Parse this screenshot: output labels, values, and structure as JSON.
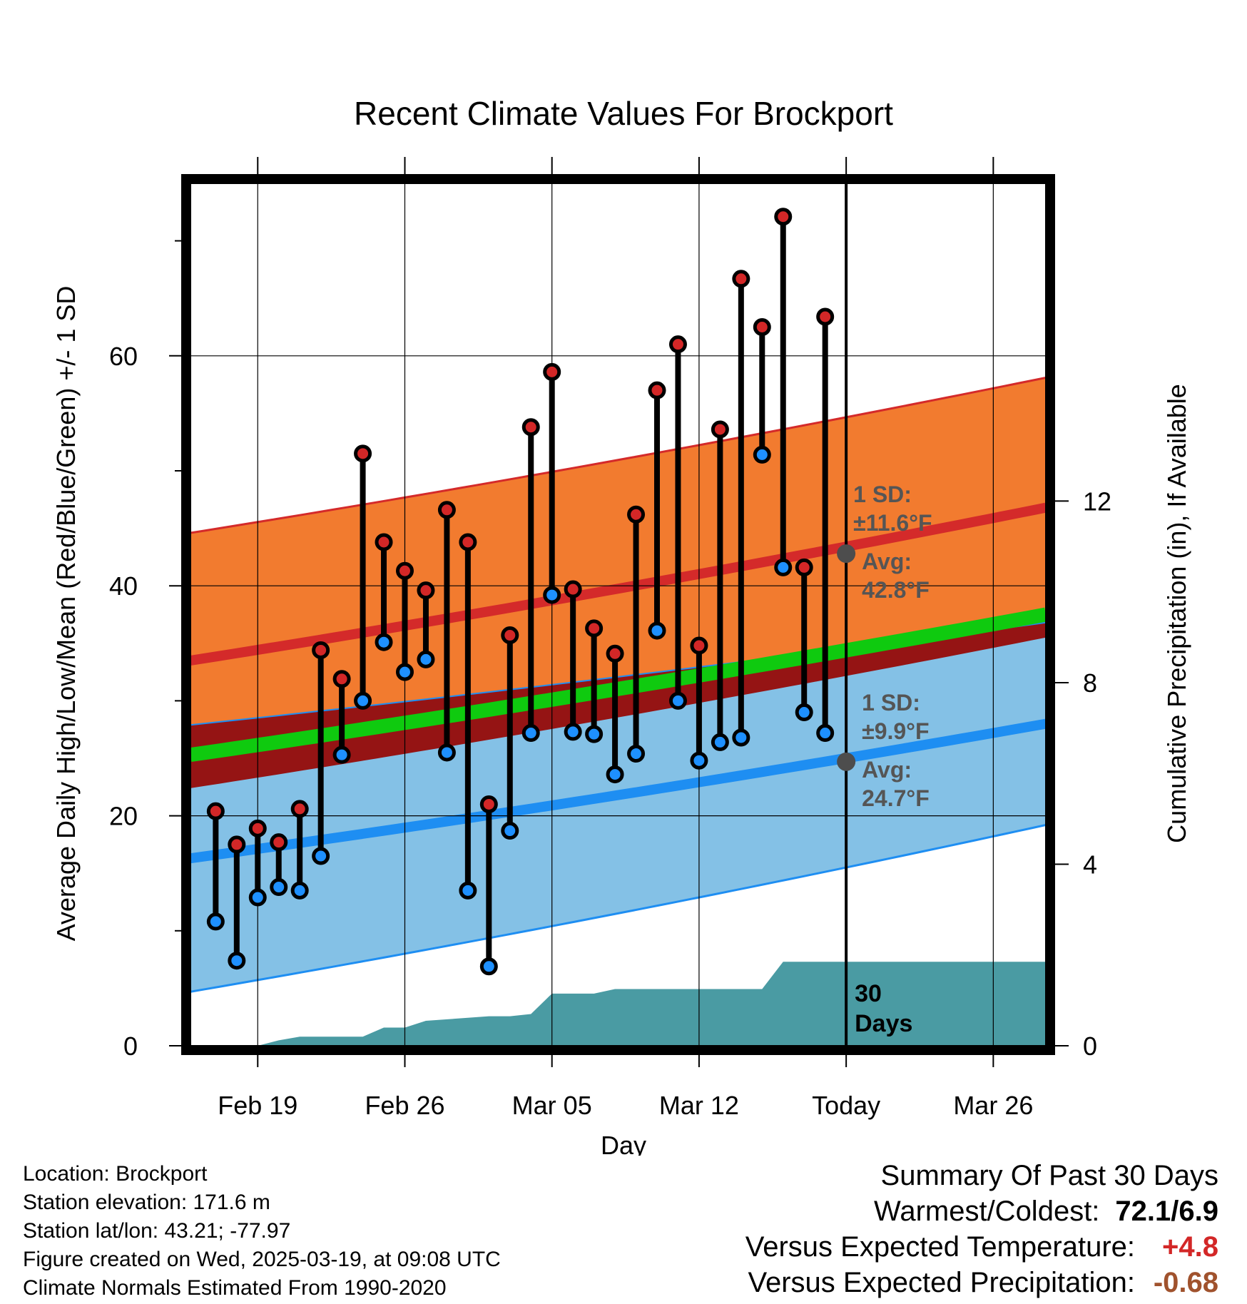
{
  "chart_data": {
    "type": "line",
    "title": "Recent Climate Values For Brockport",
    "xlabel": "Day",
    "ylabel_left": "Average Daily High/Low/Mean (Red/Blue/Green) +/- 1 SD",
    "ylabel_right": "Cumulative Precipitation (in), If Available",
    "x_tick_labels": [
      "Feb 19",
      "Feb 26",
      "Mar 05",
      "Mar 12",
      "Today",
      "Mar 26"
    ],
    "x_tick_days": [
      19,
      26,
      33,
      40,
      47,
      54
    ],
    "y_left_ticks": [
      0,
      20,
      40,
      60
    ],
    "y_left_range": [
      0,
      75
    ],
    "y_right_ticks": [
      0,
      4,
      8,
      12
    ],
    "y_right_range": [
      0,
      19
    ],
    "x_range_days": [
      15.8,
      56.5
    ],
    "x_axis_note": "day numbers count from Feb 1 2025 (Feb 19 = 19, Mar 05 = 33, Today Mar 19 = 47)",
    "daily_temps": {
      "days": [
        17,
        18,
        19,
        20,
        21,
        22,
        23,
        24,
        25,
        26,
        27,
        28,
        29,
        30,
        31,
        32,
        33,
        34,
        35,
        36,
        37,
        38,
        39,
        40,
        41,
        42,
        43,
        44,
        45,
        46
      ],
      "high": [
        20.4,
        17.5,
        18.9,
        17.7,
        20.6,
        34.4,
        31.9,
        51.5,
        43.8,
        41.3,
        39.6,
        46.6,
        43.8,
        21.0,
        35.7,
        53.8,
        58.6,
        39.7,
        36.3,
        34.1,
        46.2,
        57.0,
        61.0,
        34.8,
        53.6,
        66.7,
        62.5,
        72.1,
        41.6,
        63.4
      ],
      "low": [
        10.8,
        7.4,
        12.9,
        13.8,
        13.5,
        16.5,
        25.3,
        30.0,
        35.1,
        32.5,
        33.6,
        25.5,
        13.5,
        6.9,
        18.7,
        27.2,
        39.2,
        27.3,
        27.1,
        23.6,
        25.4,
        36.1,
        30.0,
        24.8,
        26.4,
        26.8,
        51.4,
        41.6,
        29.0,
        27.2
      ]
    },
    "normals": {
      "days": [
        15.8,
        56.5
      ],
      "avg_high": [
        33.5,
        46.8
      ],
      "avg_high_plus_1sd": [
        44.6,
        58.1
      ],
      "avg_mean": [
        25.3,
        37.5
      ],
      "avg_low": [
        16.3,
        28.0
      ],
      "avg_low_minus_1sd": [
        4.7,
        19.2
      ]
    },
    "precip_cumulative": {
      "days": [
        15.8,
        19.0,
        20.0,
        21.0,
        24.0,
        25.0,
        26.0,
        27.0,
        30.0,
        31.0,
        32.0,
        33.0,
        35.0,
        36.0,
        40.0,
        43.0,
        44.0,
        47.0,
        56.5
      ],
      "values": [
        0.0,
        0.0,
        0.12,
        0.2,
        0.2,
        0.4,
        0.4,
        0.55,
        0.65,
        0.65,
        0.7,
        1.15,
        1.15,
        1.25,
        1.25,
        1.25,
        1.85,
        1.85,
        1.85
      ]
    },
    "today_markers": {
      "high": {
        "sd_label": "1 SD:",
        "sd_value": "±11.6°F",
        "avg_label": "Avg:",
        "avg_value": "42.8°F",
        "avg": 42.8
      },
      "low": {
        "sd_label": "1 SD:",
        "sd_value": "±9.9°F",
        "avg_label": "Avg:",
        "avg_value": "24.7°F",
        "avg": 24.7
      }
    },
    "precip_note": [
      "30",
      "Days"
    ],
    "grid": true,
    "colors": {
      "high_band": "#f27b2f",
      "high_line": "#d42a2a",
      "low_band": "#84c1e6",
      "low_line": "#1e8ef2",
      "overlap_band": "#951414",
      "mean_line": "#0fca0f",
      "precip": "#4a9ba3",
      "high_dot": "#d32727",
      "low_dot": "#1e90ff",
      "today_dot": "#4d4d4d",
      "annotation": "#555555"
    }
  },
  "info": {
    "location": "Location: Brockport",
    "elevation": "Station elevation: 171.6 m",
    "latlon": "Station lat/lon: 43.21; -77.97",
    "created": "Figure created on Wed, 2025-03-19, at 09:08 UTC",
    "normals": "Climate Normals Estimated From 1990-2020"
  },
  "summary": {
    "title": "Summary Of Past 30 Days",
    "warm_cold_label": "Warmest/Coldest:",
    "warm_cold_value": "72.1/6.9",
    "temp_label": "Versus Expected Temperature:",
    "temp_value": "+4.8",
    "temp_color": "#d32727",
    "precip_label": "Versus Expected Precipitation:",
    "precip_value": "-0.68",
    "precip_color": "#a0522d"
  }
}
